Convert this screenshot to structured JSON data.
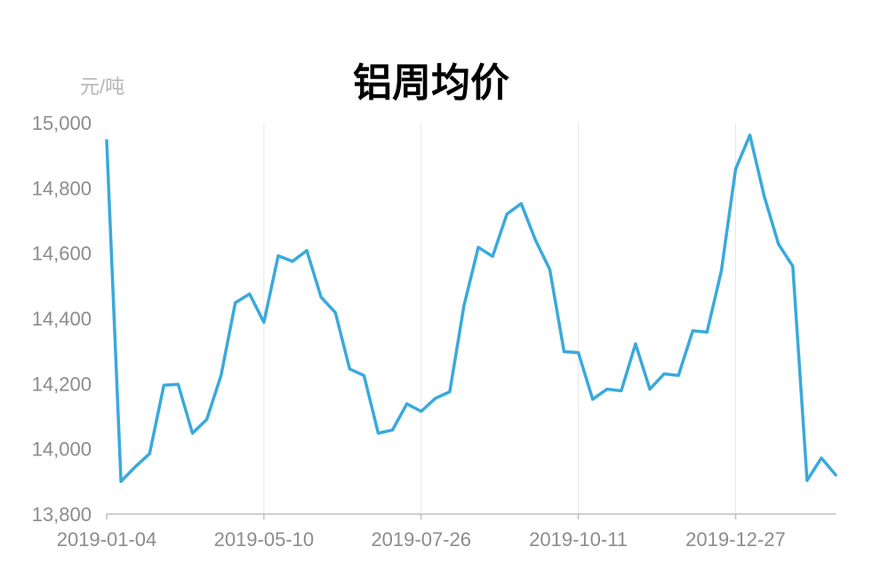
{
  "chart_data": {
    "type": "line",
    "title": "铝周均价",
    "ylabel": "元/吨",
    "xlabel": "",
    "ylim": [
      13800,
      15000
    ],
    "yticks": [
      13800,
      14000,
      14200,
      14400,
      14600,
      14800,
      15000
    ],
    "ytick_labels": [
      "13,800",
      "14,000",
      "14,200",
      "14,400",
      "14,600",
      "14,800",
      "15,000"
    ],
    "xtick_labels": [
      "2019-01-04",
      "2019-05-10",
      "2019-07-26",
      "2019-10-11",
      "2019-12-27"
    ],
    "xtick_indices": [
      0,
      11,
      22,
      33,
      44
    ],
    "grid": "vertical",
    "legend": "none",
    "series": [
      {
        "color": "#3aa9dc",
        "values": [
          14945,
          13900,
          13945,
          13985,
          14195,
          14198,
          14048,
          14090,
          14225,
          14448,
          14475,
          14388,
          14592,
          14575,
          14608,
          14465,
          14418,
          14245,
          14225,
          14048,
          14058,
          14138,
          14115,
          14155,
          14175,
          14440,
          14618,
          14590,
          14720,
          14752,
          14640,
          14550,
          14298,
          14295,
          14152,
          14183,
          14178,
          14322,
          14183,
          14230,
          14225,
          14362,
          14358,
          14545,
          14858,
          14962,
          14775,
          14628,
          14560,
          13903,
          13972,
          13920
        ]
      }
    ]
  }
}
